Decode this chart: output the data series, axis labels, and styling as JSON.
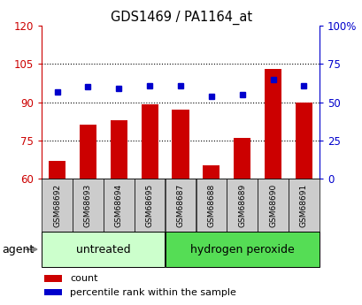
{
  "title": "GDS1469 / PA1164_at",
  "categories": [
    "GSM68692",
    "GSM68693",
    "GSM68694",
    "GSM68695",
    "GSM68687",
    "GSM68688",
    "GSM68689",
    "GSM68690",
    "GSM68691"
  ],
  "bar_values": [
    67,
    81,
    83,
    89,
    87,
    65,
    76,
    103,
    90
  ],
  "dot_values": [
    57,
    60,
    59,
    61,
    61,
    54,
    55,
    65,
    61
  ],
  "ylim_left": [
    60,
    120
  ],
  "ylim_right": [
    0,
    100
  ],
  "yticks_left": [
    60,
    75,
    90,
    105,
    120
  ],
  "yticks_right": [
    0,
    25,
    50,
    75,
    100
  ],
  "ytick_labels_right": [
    "0",
    "25",
    "50",
    "75",
    "100%"
  ],
  "bar_color": "#cc0000",
  "dot_color": "#0000cc",
  "bar_width": 0.55,
  "groups": [
    {
      "label": "untreated",
      "indices": [
        0,
        1,
        2,
        3
      ],
      "color": "#ccffcc"
    },
    {
      "label": "hydrogen peroxide",
      "indices": [
        4,
        5,
        6,
        7,
        8
      ],
      "color": "#55dd55"
    }
  ],
  "agent_label": "agent",
  "legend_items": [
    {
      "label": "count",
      "color": "#cc0000"
    },
    {
      "label": "percentile rank within the sample",
      "color": "#0000cc"
    }
  ],
  "tick_color_left": "#cc0000",
  "tick_color_right": "#0000cc",
  "xticklabel_bg": "#cccccc",
  "grid_linestyle": ":",
  "grid_linewidth": 0.8,
  "grid_ticks": [
    75,
    90,
    105
  ]
}
